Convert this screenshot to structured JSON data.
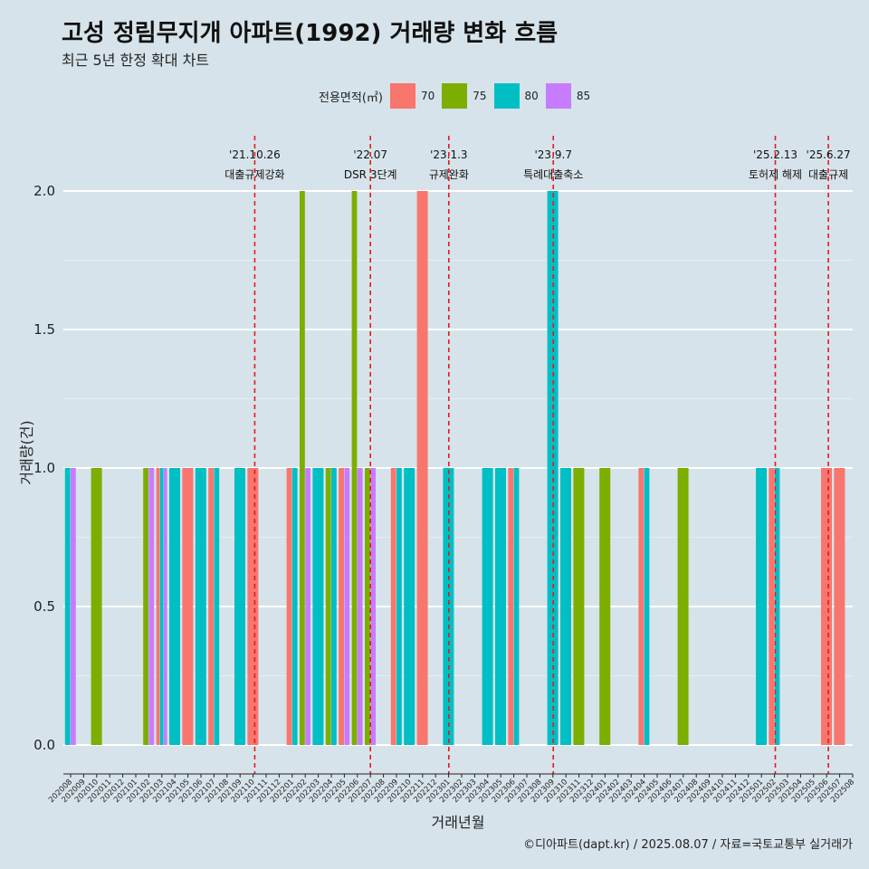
{
  "title": "고성 정림무지개 아파트(1992) 거래량 변화 흐름",
  "subtitle": "최근 5년 한정 확대 차트",
  "caption": "©디아파트(dapt.kr) / 2025.08.07 / 자료=국토교통부 실거래가",
  "legend": {
    "title": "전용면적(㎡)",
    "items": [
      {
        "label": "70",
        "color": "#f8766d"
      },
      {
        "label": "75",
        "color": "#7cae00"
      },
      {
        "label": "80",
        "color": "#00bfc4"
      },
      {
        "label": "85",
        "color": "#c77cff"
      }
    ]
  },
  "chart_data": {
    "type": "bar",
    "xlabel": "거래년월",
    "ylabel": "거래량(건)",
    "ylim": [
      0,
      2
    ],
    "yticks": [
      "0.0",
      "0.5",
      "1.0",
      "1.5",
      "2.0"
    ],
    "grid": true,
    "legend_position": "top",
    "categories": [
      "202008",
      "202009",
      "202010",
      "202011",
      "202012",
      "202101",
      "202102",
      "202103",
      "202104",
      "202105",
      "202106",
      "202107",
      "202108",
      "202109",
      "202110",
      "202111",
      "202112",
      "202201",
      "202202",
      "202203",
      "202204",
      "202205",
      "202206",
      "202207",
      "202208",
      "202209",
      "202210",
      "202211",
      "202212",
      "202301",
      "202302",
      "202303",
      "202304",
      "202305",
      "202306",
      "202307",
      "202308",
      "202309",
      "202310",
      "202311",
      "202312",
      "202401",
      "202402",
      "202403",
      "202404",
      "202405",
      "202406",
      "202407",
      "202408",
      "202409",
      "202410",
      "202411",
      "202412",
      "202501",
      "202502",
      "202503",
      "202504",
      "202505",
      "202506",
      "202507",
      "202508"
    ],
    "series": [
      {
        "name": "70",
        "color": "#f8766d",
        "values": [
          0,
          0,
          0,
          0,
          0,
          0,
          0,
          1,
          0,
          1,
          0,
          1,
          0,
          0,
          1,
          0,
          0,
          1,
          0,
          0,
          0,
          1,
          0,
          0,
          0,
          1,
          0,
          2,
          0,
          0,
          0,
          0,
          0,
          0,
          1,
          0,
          0,
          0,
          0,
          0,
          0,
          0,
          0,
          0,
          1,
          0,
          0,
          0,
          0,
          0,
          0,
          0,
          0,
          0,
          1,
          0,
          0,
          0,
          1,
          1,
          0
        ]
      },
      {
        "name": "75",
        "color": "#7cae00",
        "values": [
          0,
          0,
          1,
          0,
          0,
          0,
          1,
          0,
          0,
          0,
          0,
          0,
          0,
          0,
          0,
          0,
          0,
          0,
          2,
          0,
          1,
          0,
          2,
          1,
          0,
          0,
          0,
          0,
          0,
          0,
          0,
          0,
          0,
          0,
          0,
          0,
          0,
          0,
          0,
          1,
          0,
          1,
          0,
          0,
          0,
          0,
          0,
          1,
          0,
          0,
          0,
          0,
          0,
          0,
          0,
          0,
          0,
          0,
          0,
          0,
          0
        ]
      },
      {
        "name": "80",
        "color": "#00bfc4",
        "values": [
          1,
          0,
          0,
          0,
          0,
          0,
          0,
          1,
          1,
          0,
          1,
          1,
          0,
          1,
          0,
          0,
          0,
          1,
          0,
          1,
          1,
          0,
          0,
          0,
          0,
          1,
          1,
          0,
          0,
          1,
          0,
          0,
          1,
          1,
          1,
          0,
          0,
          2,
          1,
          0,
          0,
          0,
          0,
          0,
          1,
          0,
          0,
          0,
          0,
          0,
          0,
          0,
          0,
          1,
          1,
          0,
          0,
          0,
          0,
          0,
          0
        ]
      },
      {
        "name": "85",
        "color": "#c77cff",
        "values": [
          1,
          0,
          0,
          0,
          0,
          0,
          1,
          1,
          0,
          0,
          0,
          0,
          0,
          0,
          0,
          0,
          0,
          0,
          1,
          0,
          0,
          1,
          1,
          1,
          0,
          0,
          0,
          0,
          0,
          0,
          0,
          0,
          0,
          0,
          0,
          0,
          0,
          0,
          0,
          0,
          0,
          0,
          0,
          0,
          0,
          0,
          0,
          0,
          0,
          0,
          0,
          0,
          0,
          0,
          0,
          0,
          0,
          0,
          0,
          0,
          0
        ]
      }
    ],
    "events": [
      {
        "date": "'21.10.26",
        "label": "대출규제강화",
        "month": "202110",
        "offset": 0.85
      },
      {
        "date": "'22.07",
        "label": "DSR 3단계",
        "month": "202207",
        "offset": 0.0
      },
      {
        "date": "'23.1.3",
        "label": "규제완화",
        "month": "202301",
        "offset": 0.1
      },
      {
        "date": "'23.9.7",
        "label": "특례대출축소",
        "month": "202309",
        "offset": 0.2
      },
      {
        "date": "'25.2.13",
        "label": "토허제 해제",
        "month": "202502",
        "offset": 0.42
      },
      {
        "date": "'25.6.27",
        "label": "대출규제",
        "month": "202506",
        "offset": 0.87
      }
    ]
  }
}
